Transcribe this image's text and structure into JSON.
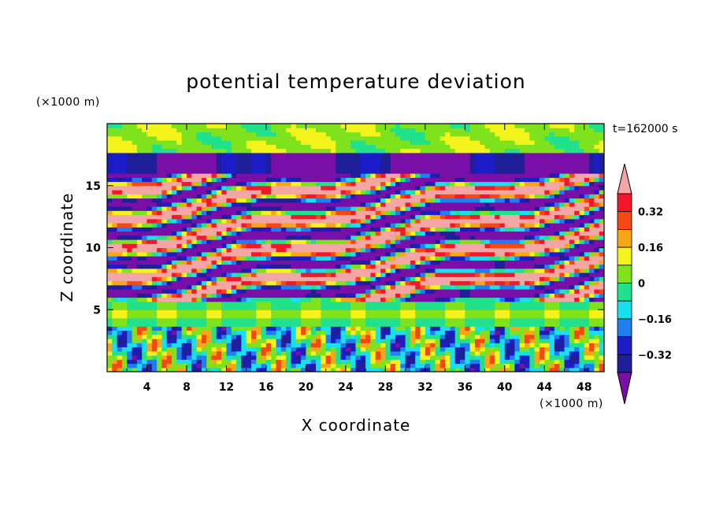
{
  "chart_data": {
    "type": "heatmap",
    "title": "potential temperature deviation",
    "xlabel": "X coordinate",
    "ylabel": "Z coordinate",
    "x_unit": "(×1000 m)",
    "y_unit": "(×1000 m)",
    "time_label": "t=162000 s",
    "xlim": [
      0,
      50
    ],
    "ylim": [
      0,
      20
    ],
    "x_ticks": [
      4,
      8,
      12,
      16,
      20,
      24,
      28,
      32,
      36,
      40,
      44,
      48
    ],
    "y_ticks": [
      5,
      10,
      15
    ],
    "colorbar": {
      "levels": [
        -0.4,
        -0.32,
        -0.24,
        -0.16,
        -0.08,
        0,
        0.08,
        0.16,
        0.24,
        0.32,
        0.4
      ],
      "colors": [
        "#7a0fa8",
        "#1f1f9a",
        "#1c1cc8",
        "#1f7ef0",
        "#18e0f0",
        "#21e18c",
        "#7ee21c",
        "#f4f41c",
        "#f6a718",
        "#f64714",
        "#f4162a",
        "#f4a6a6"
      ],
      "tick_labels": [
        "0.32",
        "0.16",
        "0",
        "−0.16",
        "−0.32"
      ],
      "tick_values": [
        0.32,
        0.16,
        0,
        -0.16,
        -0.32
      ],
      "extend": "both"
    },
    "bands": [
      {
        "z_range": [
          0,
          3.5
        ],
        "pattern": "mixed small-scale cells",
        "value_range": [
          -0.2,
          0.3
        ]
      },
      {
        "z_range": [
          3.5,
          5.8
        ],
        "pattern": "near-neutral layer",
        "value": 0.0
      },
      {
        "z_range": [
          5.8,
          17.5
        ],
        "pattern": "alternating positive/negative sheets",
        "value_range": [
          -0.4,
          0.4
        ]
      },
      {
        "z_range": [
          17.5,
          20
        ],
        "pattern": "weak positive",
        "value": 0.05
      }
    ],
    "grid": false,
    "legend": "colorbar-right"
  }
}
